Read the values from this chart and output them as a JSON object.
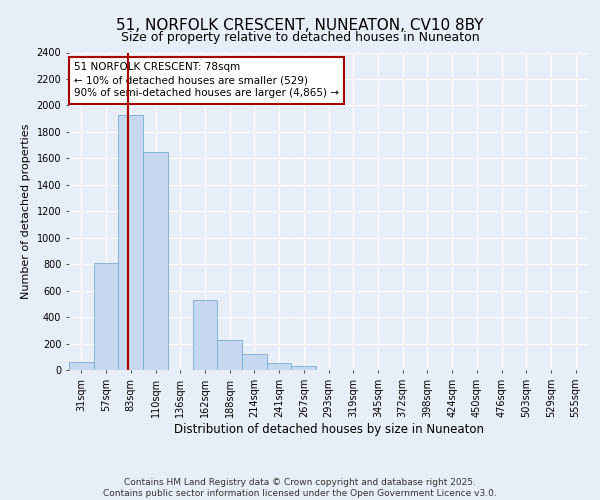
{
  "title": "51, NORFOLK CRESCENT, NUNEATON, CV10 8BY",
  "subtitle": "Size of property relative to detached houses in Nuneaton",
  "xlabel": "Distribution of detached houses by size in Nuneaton",
  "ylabel": "Number of detached properties",
  "categories": [
    "31sqm",
    "57sqm",
    "83sqm",
    "110sqm",
    "136sqm",
    "162sqm",
    "188sqm",
    "214sqm",
    "241sqm",
    "267sqm",
    "293sqm",
    "319sqm",
    "345sqm",
    "372sqm",
    "398sqm",
    "424sqm",
    "450sqm",
    "476sqm",
    "503sqm",
    "529sqm",
    "555sqm"
  ],
  "values": [
    60,
    810,
    1930,
    1650,
    0,
    530,
    230,
    120,
    55,
    30,
    0,
    0,
    0,
    0,
    0,
    0,
    0,
    0,
    0,
    0,
    0
  ],
  "bar_color": "#c5d8ef",
  "bar_edge_color": "#7aadcf",
  "vline_color": "#aa0000",
  "vline_pos": 1.88,
  "annotation_text": "51 NORFOLK CRESCENT: 78sqm\n← 10% of detached houses are smaller (529)\n90% of semi-detached houses are larger (4,865) →",
  "annotation_box_color": "#ffffff",
  "annotation_box_edge": "#aa0000",
  "ylim": [
    0,
    2400
  ],
  "yticks": [
    0,
    200,
    400,
    600,
    800,
    1000,
    1200,
    1400,
    1600,
    1800,
    2000,
    2200,
    2400
  ],
  "background_color": "#e8eef8",
  "plot_bg_color": "#e8eef8",
  "grid_color": "#ffffff",
  "footer": "Contains HM Land Registry data © Crown copyright and database right 2025.\nContains public sector information licensed under the Open Government Licence v3.0.",
  "title_fontsize": 11,
  "subtitle_fontsize": 9,
  "xlabel_fontsize": 8.5,
  "ylabel_fontsize": 8,
  "tick_fontsize": 7,
  "annotation_fontsize": 7.5,
  "footer_fontsize": 6.5
}
